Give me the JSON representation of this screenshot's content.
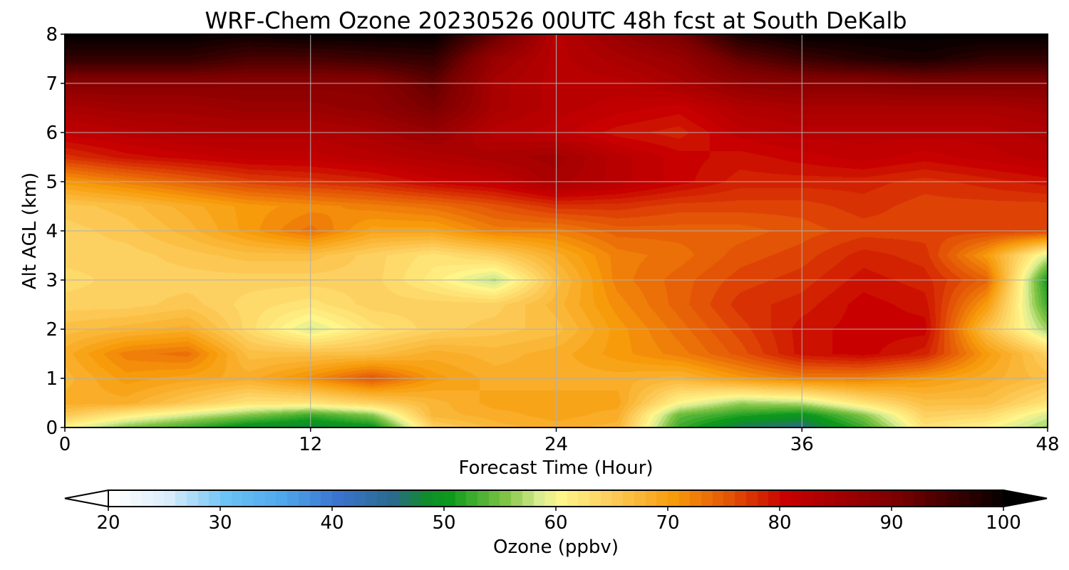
{
  "chart_data": {
    "type": "heatmap",
    "title": "WRF-Chem Ozone  20230526 00UTC 48h fcst at South DeKalb",
    "xlabel": "Forecast Time (Hour)",
    "ylabel": "Alt AGL (km)",
    "xlim": [
      0,
      48
    ],
    "ylim": [
      0,
      8
    ],
    "x_ticks": [
      "0",
      "12",
      "24",
      "36",
      "48"
    ],
    "y_ticks": [
      "0",
      "1",
      "2",
      "3",
      "4",
      "5",
      "6",
      "7",
      "8"
    ],
    "grid": true,
    "x": [
      0,
      3,
      6,
      9,
      12,
      15,
      18,
      21,
      24,
      27,
      30,
      33,
      36,
      39,
      42,
      45,
      48
    ],
    "y": [
      0,
      0.25,
      0.5,
      1,
      1.5,
      2,
      2.5,
      3,
      3.5,
      4,
      4.5,
      5,
      5.5,
      6,
      6.5,
      7,
      7.5,
      8
    ],
    "z_units": "ppbv",
    "z": [
      [
        60,
        55,
        52,
        48,
        47,
        49,
        64,
        67,
        68,
        67,
        52,
        46,
        45,
        52,
        62,
        60,
        56
      ],
      [
        65,
        61,
        58,
        55,
        52,
        55,
        67,
        68,
        69,
        68,
        54,
        51,
        49,
        55,
        64,
        63,
        58
      ],
      [
        68,
        68,
        65,
        62,
        62,
        64,
        67,
        69,
        69,
        69,
        60,
        56,
        57,
        62,
        66,
        66,
        62
      ],
      [
        67,
        70,
        69,
        68,
        71,
        75,
        70,
        68,
        68,
        68,
        67,
        70,
        72,
        72,
        70,
        68,
        66
      ],
      [
        68,
        72,
        73,
        66,
        66,
        66,
        68,
        67,
        68,
        70,
        72,
        75,
        79,
        80,
        78,
        70,
        64
      ],
      [
        66,
        67,
        68,
        63,
        58,
        62,
        64,
        65,
        66,
        70,
        73,
        76,
        79,
        80,
        80,
        66,
        56
      ],
      [
        64,
        64,
        65,
        63,
        62,
        64,
        64,
        64,
        67,
        71,
        74,
        77,
        78,
        80,
        79,
        70,
        52
      ],
      [
        63,
        64,
        64,
        64,
        64,
        64,
        61,
        57,
        66,
        72,
        74,
        76,
        77,
        79,
        78,
        74,
        50
      ],
      [
        64,
        64,
        65,
        66,
        66,
        64,
        62,
        64,
        68,
        72,
        73,
        75,
        76,
        78,
        77,
        70,
        58
      ],
      [
        64,
        65,
        67,
        70,
        73,
        69,
        69,
        72,
        72,
        74,
        74,
        74,
        75,
        76,
        76,
        76,
        76
      ],
      [
        65,
        66,
        68,
        70,
        71,
        72,
        73,
        75,
        77,
        77,
        76,
        76,
        76,
        77,
        76,
        76,
        76
      ],
      [
        70,
        72,
        74,
        76,
        77,
        78,
        80,
        81,
        84,
        82,
        80,
        78,
        78,
        78,
        77,
        78,
        79
      ],
      [
        77,
        79,
        80,
        81,
        81,
        82,
        83,
        84,
        85,
        82,
        80,
        79,
        80,
        81,
        80,
        81,
        82
      ],
      [
        81,
        82,
        83,
        83,
        83,
        84,
        86,
        82,
        81,
        79,
        78,
        81,
        82,
        82,
        82,
        82,
        83
      ],
      [
        84,
        85,
        85,
        86,
        86,
        87,
        90,
        84,
        82,
        81,
        80,
        83,
        84,
        84,
        84,
        84,
        85
      ],
      [
        88,
        88,
        88,
        88,
        88,
        88,
        92,
        84,
        82,
        82,
        84,
        87,
        88,
        88,
        89,
        89,
        89
      ],
      [
        96,
        96,
        96,
        94,
        94,
        95,
        96,
        86,
        82,
        84,
        86,
        92,
        95,
        97,
        98,
        96,
        96
      ],
      [
        100,
        100,
        100,
        99,
        100,
        100,
        100,
        92,
        82,
        86,
        90,
        98,
        100,
        100,
        100,
        100,
        100
      ]
    ],
    "colorbar": {
      "label": "Ozone  (ppbv)",
      "min": 20,
      "max": 100,
      "ticks": [
        "20",
        "30",
        "40",
        "50",
        "60",
        "70",
        "80",
        "90",
        "100"
      ],
      "extend": "both",
      "stops": [
        {
          "v": 20,
          "c": "#ffffff"
        },
        {
          "v": 25,
          "c": "#d8ecfb"
        },
        {
          "v": 30,
          "c": "#6cc3f5"
        },
        {
          "v": 35,
          "c": "#4fa7ec"
        },
        {
          "v": 40,
          "c": "#3a74cf"
        },
        {
          "v": 45,
          "c": "#2a6a8a"
        },
        {
          "v": 48,
          "c": "#0f8d2a"
        },
        {
          "v": 50,
          "c": "#0d9a1c"
        },
        {
          "v": 55,
          "c": "#7fc445"
        },
        {
          "v": 58,
          "c": "#d8ec90"
        },
        {
          "v": 60,
          "c": "#fff58a"
        },
        {
          "v": 64,
          "c": "#fdd161"
        },
        {
          "v": 70,
          "c": "#f79b0b"
        },
        {
          "v": 75,
          "c": "#e35406"
        },
        {
          "v": 80,
          "c": "#c80000"
        },
        {
          "v": 90,
          "c": "#7a0000"
        },
        {
          "v": 100,
          "c": "#000000"
        }
      ]
    }
  }
}
